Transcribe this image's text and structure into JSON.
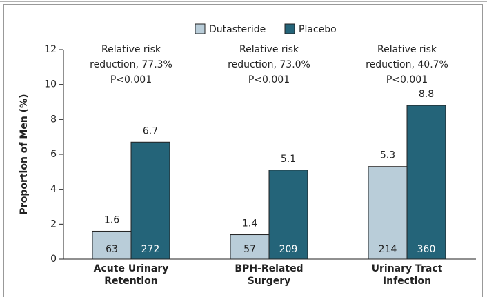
{
  "chart_data": {
    "type": "bar",
    "y_label": "Proportion of Men (%)",
    "categories": [
      "Acute Urinary Retention",
      "BPH-Related Surgery",
      "Urinary Tract Infection"
    ],
    "series": [
      {
        "name": "Dutasteride",
        "color": "#b9cdd9",
        "values": [
          1.6,
          1.4,
          5.3
        ],
        "counts": [
          63,
          57,
          214
        ]
      },
      {
        "name": "Placebo",
        "color": "#246479",
        "values": [
          6.7,
          5.1,
          8.8
        ],
        "counts": [
          272,
          209,
          360
        ]
      }
    ],
    "annotations": [
      [
        "Relative risk",
        "reduction, 77.3%",
        "P<0.001"
      ],
      [
        "Relative risk",
        "reduction, 73.0%",
        "P<0.001"
      ],
      [
        "Relative risk",
        "reduction, 40.7%",
        "P<0.001"
      ]
    ],
    "ylim": [
      0,
      12
    ],
    "yticks": [
      0,
      2,
      4,
      6,
      8,
      10,
      12
    ],
    "legend": "top"
  }
}
